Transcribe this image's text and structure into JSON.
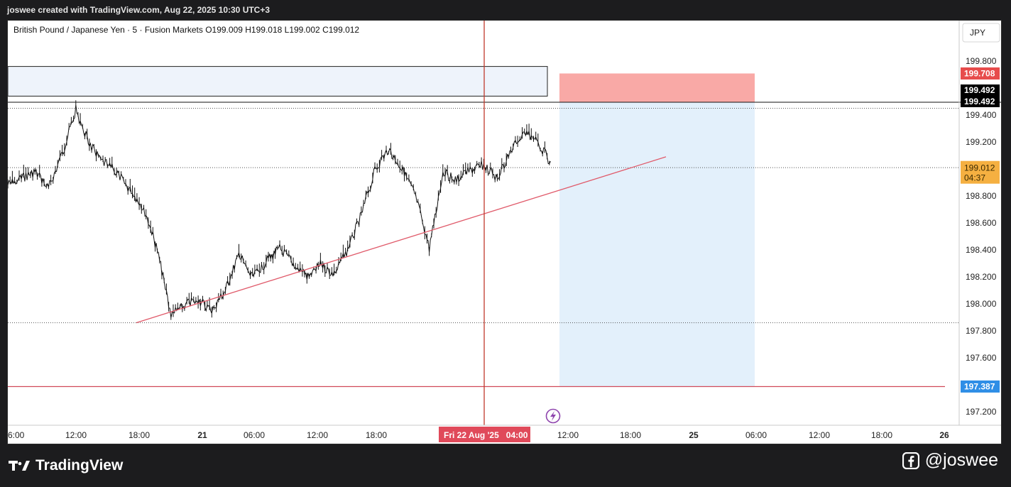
{
  "header": {
    "credit": "joswee created with TradingView.com, Aug 22, 2025 10:30 UTC+3"
  },
  "legend": {
    "symbol": "British Pound / Japanese Yen",
    "interval": "5",
    "broker": "Fusion Markets",
    "open": "O199.009",
    "high": "H199.018",
    "low": "L199.002",
    "close": "C199.012"
  },
  "currency_button": "JPY",
  "price_axis": {
    "ticks": [
      "199.800",
      "199.400",
      "199.200",
      "198.800",
      "198.600",
      "198.400",
      "198.200",
      "198.000",
      "197.800",
      "197.600",
      "197.200"
    ],
    "tick_values": [
      199.8,
      199.4,
      199.2,
      198.8,
      198.6,
      198.4,
      198.2,
      198.0,
      197.8,
      197.6,
      197.2
    ],
    "labels": {
      "stop": {
        "text": "199.708",
        "value": 199.708,
        "color": "#e74c4c"
      },
      "entry_a": {
        "text": "199.492",
        "value": 199.508,
        "color": "#000000"
      },
      "entry_b": {
        "text": "199.492",
        "value": 199.492,
        "color": "#000000"
      },
      "current": {
        "text": "199.012",
        "countdown": "04:37",
        "value": 199.012,
        "color": "#f5b041"
      },
      "target": {
        "text": "197.387",
        "value": 197.387,
        "color": "#2f8ee6"
      }
    }
  },
  "time_axis": {
    "ticks": [
      "6:00",
      "12:00",
      "18:00",
      "21",
      "06:00",
      "12:00",
      "18:00",
      "12:00",
      "18:00",
      "25",
      "06:00",
      "12:00",
      "18:00",
      "26"
    ],
    "bold": [
      "21",
      "25",
      "26"
    ],
    "crosshair_label": "Fri 22 Aug '25   04:00"
  },
  "chart_data": {
    "type": "line",
    "instrument": "GBP/JPY",
    "ylim": [
      197.05,
      200.0
    ],
    "x": [
      "19:00",
      "20:00",
      "21:00",
      "22:00",
      "23:00",
      "00:00",
      "01:00",
      "02:00",
      "03:00",
      "04:00",
      "05:00",
      "06:00",
      "07:00",
      "08:00",
      "09:00",
      "10:00",
      "11:00",
      "12:00",
      "13:00",
      "14:00",
      "15:00",
      "16:00",
      "17:00",
      "18:00",
      "19:00",
      "20:00",
      "21:00",
      "22:00",
      "23:00",
      "00:00",
      "01:00",
      "02:00",
      "03:00",
      "04:00",
      "05:00",
      "06:00",
      "07:00",
      "08:00",
      "09:00",
      "10:00",
      "11:00"
    ],
    "series": [
      {
        "values": [
          198.88,
          198.93,
          198.98,
          198.86,
          199.11,
          199.44,
          199.18,
          199.05,
          198.98,
          198.84,
          198.71,
          198.4,
          197.92,
          197.99,
          198.03,
          197.95,
          198.1,
          198.37,
          198.19,
          198.31,
          198.41,
          198.3,
          198.2,
          198.29,
          198.22,
          198.4,
          198.66,
          198.99,
          199.15,
          199.0,
          198.8,
          198.41,
          198.97,
          198.92,
          198.99,
          199.03,
          198.93,
          199.14,
          199.28,
          199.2,
          199.03
        ]
      }
    ],
    "trendline": {
      "start": [
        197.86
      ],
      "end": [
        199.09
      ],
      "color": "#e05a6a"
    },
    "horizontal_levels": [
      199.45,
      199.01,
      197.86,
      197.387
    ],
    "position_tool": {
      "stop": 199.708,
      "entry": 199.492,
      "target": 197.387
    },
    "supply_zone": {
      "top": 199.76,
      "bottom": 199.54
    }
  },
  "colors": {
    "red_zone": "#f9a9a6",
    "blue_zone": "#e3f0fb",
    "supply_fill": "#eef3fb",
    "crosshair": "#c0392b",
    "flash_icon": "#8e44ad"
  },
  "footer": {
    "brand": "TradingView",
    "handle": "@joswee",
    "icons": [
      "tradingview-logo-icon",
      "facebook-icon"
    ]
  }
}
